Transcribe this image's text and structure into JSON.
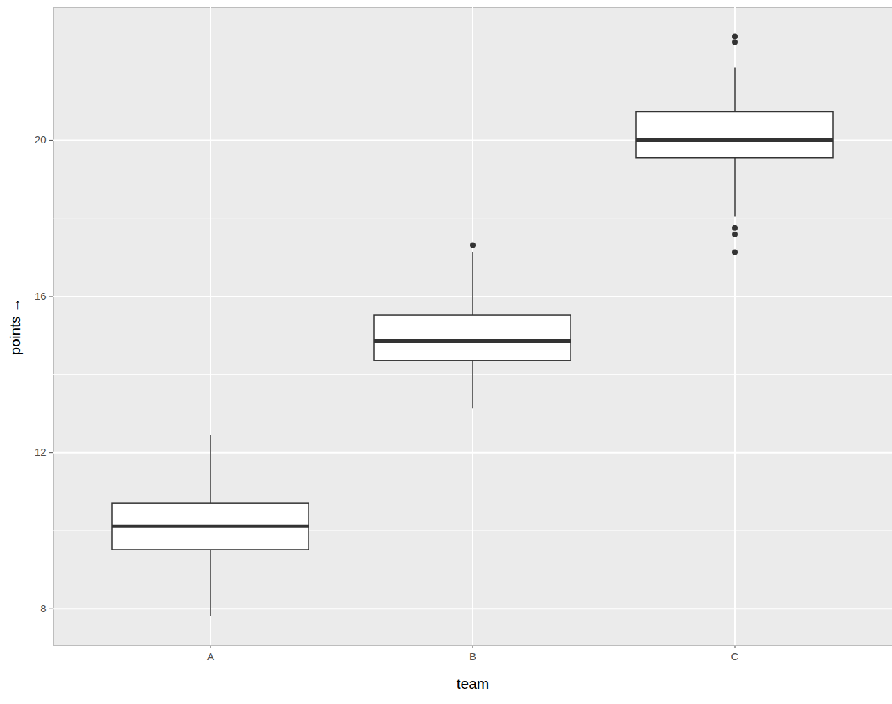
{
  "chart_data": {
    "type": "boxplot",
    "x_label": "team",
    "y_label": "points",
    "categories": [
      "A",
      "B",
      "C"
    ],
    "whisker_low": [
      7.82,
      13.12,
      18.03
    ],
    "q1": [
      9.51,
      14.35,
      19.54
    ],
    "median": [
      10.12,
      14.85,
      20.0
    ],
    "q3": [
      10.7,
      15.51,
      20.72
    ],
    "whisker_high": [
      12.43,
      17.13,
      21.84
    ],
    "outliers": [
      [],
      [
        17.31
      ],
      [
        22.65,
        22.51,
        17.75,
        17.59,
        17.13
      ]
    ],
    "color": "#ffffff",
    "ylim": [
      7.07,
      23.4
    ],
    "yticks": [
      8,
      12,
      16,
      20
    ],
    "grid": true
  }
}
